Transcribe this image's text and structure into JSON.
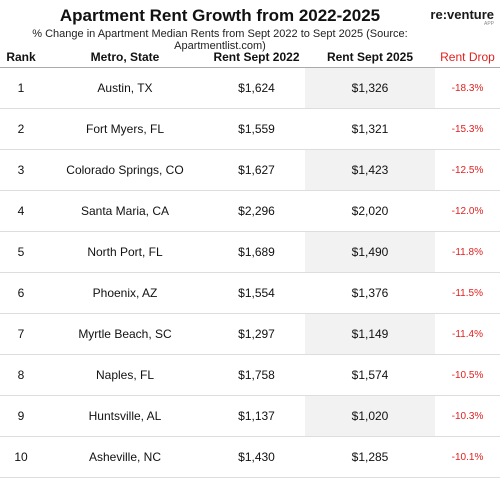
{
  "header": {
    "title": "Apartment Rent Growth from 2022-2025",
    "subtitle": "% Change in Apartment Median Rents from Sept 2022 to Sept 2025 (Source: Apartmentlist.com)"
  },
  "logo": {
    "name": "re:venture",
    "sub": "APP"
  },
  "table": {
    "columns": [
      "Rank",
      "Metro, State",
      "Rent Sept 2022",
      "Rent Sept 2025",
      "Rent Drop"
    ],
    "rows": [
      [
        "1",
        "Austin, TX",
        "$1,624",
        "$1,326",
        "-18.3%"
      ],
      [
        "2",
        "Fort Myers, FL",
        "$1,559",
        "$1,321",
        "-15.3%"
      ],
      [
        "3",
        "Colorado Springs, CO",
        "$1,627",
        "$1,423",
        "-12.5%"
      ],
      [
        "4",
        "Santa Maria, CA",
        "$2,296",
        "$2,020",
        "-12.0%"
      ],
      [
        "5",
        "North Port, FL",
        "$1,689",
        "$1,490",
        "-11.8%"
      ],
      [
        "6",
        "Phoenix, AZ",
        "$1,554",
        "$1,376",
        "-11.5%"
      ],
      [
        "7",
        "Myrtle Beach, SC",
        "$1,297",
        "$1,149",
        "-11.4%"
      ],
      [
        "8",
        "Naples, FL",
        "$1,758",
        "$1,574",
        "-10.5%"
      ],
      [
        "9",
        "Huntsville, AL",
        "$1,137",
        "$1,020",
        "-10.3%"
      ],
      [
        "10",
        "Asheville, NC",
        "$1,430",
        "$1,285",
        "-10.1%"
      ]
    ]
  }
}
